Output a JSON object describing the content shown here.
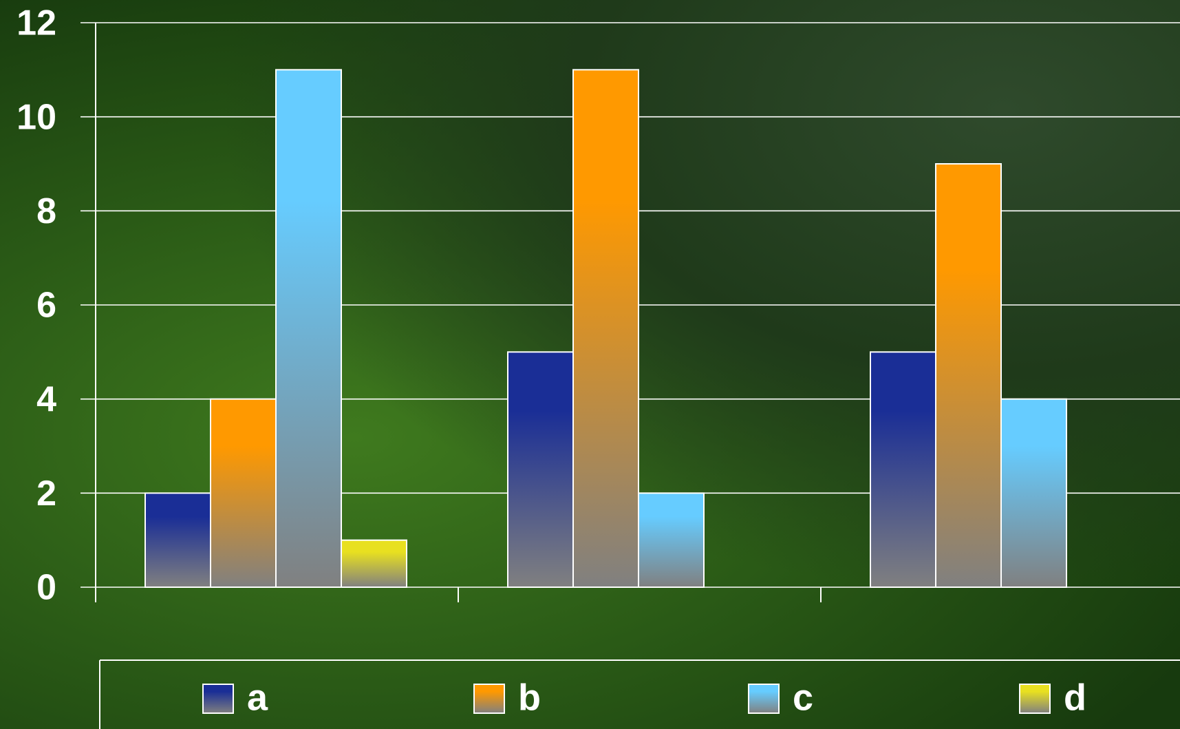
{
  "chart_data": {
    "type": "bar",
    "categories": [
      null,
      null,
      null
    ],
    "series": [
      {
        "name": "a",
        "color": "#1a2e96",
        "values": [
          2,
          5,
          5
        ]
      },
      {
        "name": "b",
        "color": "#ff9900",
        "values": [
          4,
          11,
          9
        ]
      },
      {
        "name": "c",
        "color": "#66ccff",
        "values": [
          11,
          2,
          4
        ]
      },
      {
        "name": "d",
        "color": "#e8e020",
        "values": [
          1,
          null,
          null
        ]
      }
    ],
    "ylim": [
      0,
      12
    ],
    "yticks": [
      0,
      2,
      4,
      6,
      8,
      10,
      12
    ],
    "grid": true,
    "legend": "bottom"
  }
}
